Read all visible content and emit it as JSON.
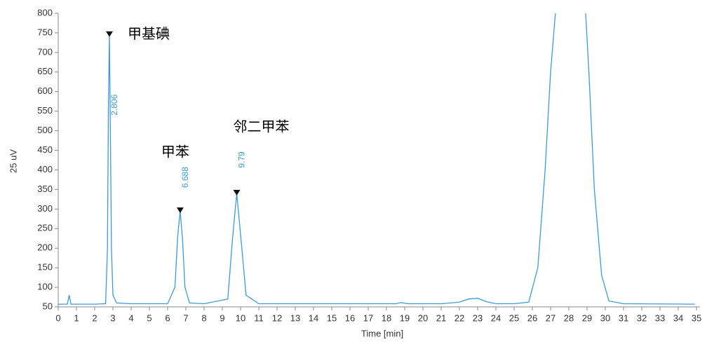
{
  "chart_data": {
    "type": "line",
    "y_label": "25 uV",
    "x_label": "Time [min]",
    "xlim": [
      0,
      35
    ],
    "xticks": [
      0,
      1,
      2,
      3,
      4,
      5,
      6,
      7,
      8,
      9,
      10,
      11,
      12,
      13,
      14,
      15,
      16,
      17,
      18,
      19,
      20,
      21,
      22,
      23,
      24,
      25,
      26,
      27,
      28,
      29,
      30,
      31,
      32,
      33,
      34,
      35
    ],
    "ylim": [
      50,
      800
    ],
    "yticks": [
      50,
      100,
      150,
      200,
      250,
      300,
      350,
      400,
      450,
      500,
      550,
      600,
      650,
      700,
      750,
      800
    ],
    "series": [
      {
        "color": "#3d9ad8",
        "x": [
          0,
          0.5,
          0.6,
          0.7,
          1,
          2,
          2.6,
          2.7,
          2.75,
          2.806,
          2.86,
          2.92,
          3.0,
          3.2,
          4,
          6,
          6.4,
          6.55,
          6.688,
          6.82,
          6.95,
          7.2,
          8,
          9.3,
          9.55,
          9.79,
          10.03,
          10.3,
          11,
          15,
          18.5,
          18.8,
          19.2,
          21,
          22,
          22.5,
          23,
          23.5,
          24,
          25,
          25.8,
          26.3,
          26.7,
          27,
          27.3,
          28.1,
          28.9,
          29.1,
          29.4,
          29.8,
          30.2,
          31,
          34.9
        ],
        "values": [
          57,
          57,
          80,
          57,
          57,
          57,
          58,
          200,
          550,
          745,
          500,
          200,
          80,
          60,
          58,
          58,
          100,
          230,
          295,
          220,
          100,
          60,
          58,
          70,
          220,
          340,
          220,
          80,
          58,
          58,
          58,
          61,
          58,
          58,
          62,
          70,
          72,
          63,
          58,
          58,
          62,
          150,
          400,
          650,
          820,
          1100,
          820,
          650,
          350,
          130,
          65,
          58,
          57
        ]
      }
    ],
    "peaks": [
      {
        "time": 2.806,
        "height": 745,
        "name": "甲基碘"
      },
      {
        "time": 6.688,
        "height": 295,
        "name": "甲苯"
      },
      {
        "time": 9.79,
        "height": 340,
        "name": "邻二甲苯"
      }
    ]
  }
}
